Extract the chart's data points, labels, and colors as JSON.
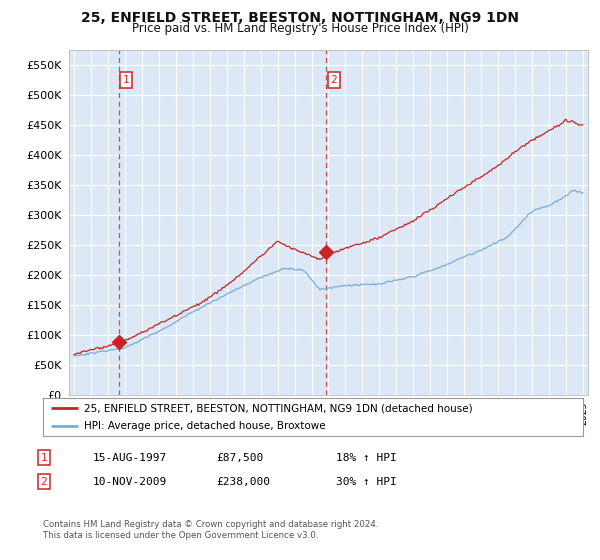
{
  "title": "25, ENFIELD STREET, BEESTON, NOTTINGHAM, NG9 1DN",
  "subtitle": "Price paid vs. HM Land Registry's House Price Index (HPI)",
  "price_paid": [
    {
      "date": 1997.62,
      "price": 87500,
      "label": "1"
    },
    {
      "date": 2009.86,
      "price": 238000,
      "label": "2"
    }
  ],
  "legend_line1": "25, ENFIELD STREET, BEESTON, NOTTINGHAM, NG9 1DN (detached house)",
  "legend_line2": "HPI: Average price, detached house, Broxtowe",
  "table_rows": [
    {
      "num": "1",
      "date": "15-AUG-1997",
      "amount": "£87,500",
      "hpi": "18% ↑ HPI"
    },
    {
      "num": "2",
      "date": "10-NOV-2009",
      "amount": "£238,000",
      "hpi": "30% ↑ HPI"
    }
  ],
  "footnote1": "Contains HM Land Registry data © Crown copyright and database right 2024.",
  "footnote2": "This data is licensed under the Open Government Licence v3.0.",
  "hpi_color": "#7aaddb",
  "price_color": "#cc2222",
  "bg_color": "#dce8f5",
  "grid_color": "#ffffff",
  "ylim": [
    0,
    575000
  ],
  "yticks": [
    0,
    50000,
    100000,
    150000,
    200000,
    250000,
    300000,
    350000,
    400000,
    450000,
    500000,
    550000
  ],
  "xlim": [
    1994.7,
    2025.3
  ]
}
